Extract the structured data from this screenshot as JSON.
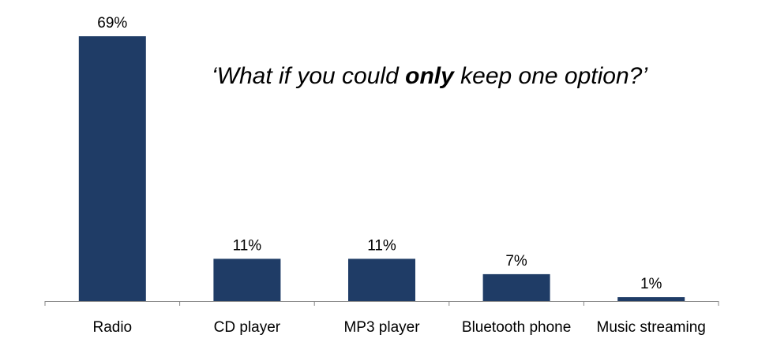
{
  "chart_data": {
    "type": "bar",
    "title_prefix": "‘What if you could ",
    "title_emphasis": "only",
    "title_suffix": " keep one option?’",
    "categories": [
      "Radio",
      "CD player",
      "MP3 player",
      "Bluetooth phone",
      "Music streaming"
    ],
    "values": [
      69,
      11,
      11,
      7,
      1
    ],
    "data_labels": [
      "69%",
      "11%",
      "11%",
      "7%",
      "1%"
    ],
    "ylim": [
      0,
      69
    ],
    "bar_color": "#1f3c66",
    "axis_color": "#868686",
    "grid": false,
    "legend": "none"
  }
}
